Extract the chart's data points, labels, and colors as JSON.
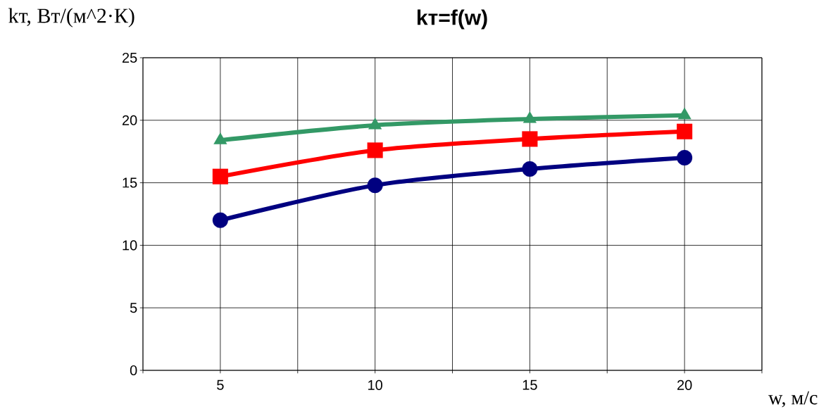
{
  "chart_data": {
    "type": "line",
    "title": "kт=f(w)",
    "xlabel": "w, м/с",
    "ylabel": "kт, Вт/(м^2·К)",
    "x": [
      5,
      10,
      15,
      20
    ],
    "series": [
      {
        "color": "#000080",
        "marker": "circle",
        "values": [
          12.0,
          14.8,
          16.1,
          17.0
        ]
      },
      {
        "color": "#ff0000",
        "marker": "square",
        "values": [
          15.5,
          17.6,
          18.5,
          19.1
        ]
      },
      {
        "color": "#339966",
        "marker": "triangle",
        "values": [
          18.4,
          19.6,
          20.1,
          20.4
        ]
      }
    ],
    "xlim": [
      2.5,
      22.5
    ],
    "xticks": [
      {
        "value": 2.5,
        "label": null
      },
      5,
      {
        "value": 7.5,
        "label": null
      },
      10,
      {
        "value": 12.5,
        "label": null
      },
      15,
      {
        "value": 17.5,
        "label": null
      },
      20,
      {
        "value": 22.5,
        "label": null
      }
    ],
    "ylim": [
      0,
      25
    ],
    "yticks": [
      0,
      5,
      10,
      15,
      20,
      25
    ],
    "grid": true
  }
}
